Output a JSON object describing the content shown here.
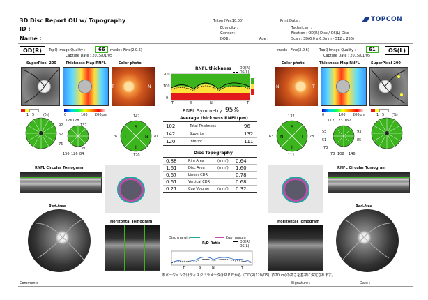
{
  "header": {
    "title": "3D Disc Report OU w/ Topography",
    "version": "Triton (Ver.10.00)",
    "print_date": "Print Date :",
    "brand": "TOPCON",
    "id": "ID :",
    "name": "Name :",
    "ethnicity": "Ethnicity :",
    "gender": "Gender :",
    "dob": "DOB :",
    "age": "Age :",
    "technician": "Technician :",
    "fixation": "Fixation : OD(R) Disc / OS(L) Disc",
    "scan": "Scan : 3D(6.0 x 6.0mm - 512 x 256)"
  },
  "od": {
    "eye": "OD(R)",
    "quality_label": "TopQ Image Quality :",
    "quality": "66",
    "mode": "mode : Fine(2.0.6)",
    "capture": "Capture Date : 2015/01/05",
    "superpixel": "SuperPixel-200",
    "thickness_map": "Thickness Map RNFL",
    "color_photo": "Color photo",
    "sectors_top": [
      "92",
      "126",
      "128",
      "137"
    ],
    "sectors_mid": [
      "62",
      "76",
      "54"
    ],
    "sectors_bottom": [
      "75",
      "80"
    ],
    "sectors_lower": [
      "150",
      "126",
      "84"
    ],
    "quad_values": {
      "s": "142",
      "t": "76",
      "n": "70",
      "i": "120"
    },
    "circular": "RNFL Circular Tomogram",
    "redfree": "Red-free",
    "horizontal": "Horizontal Tomogram"
  },
  "os": {
    "eye": "OS(L)",
    "quality_label": "TopQ Image Quality :",
    "quality": "61",
    "mode": "mode : Fine(2.0.6)",
    "capture": "Capture Date : 2015/01/05",
    "superpixel": "SuperPixel-200",
    "thickness_map": "Thickness Map RNFL",
    "color_photo": "Color photo",
    "sectors_top": [
      "112",
      "123",
      "162"
    ],
    "sectors_mid": [
      "55",
      "93",
      "85"
    ],
    "sectors_bottom": [
      "51",
      "73"
    ],
    "sectors_lower": [
      "78",
      "108",
      "146"
    ],
    "quad_values": {
      "s": "132",
      "t": "63",
      "n": "78",
      "i": "111"
    },
    "circular": "RNFL Circular Tomogram",
    "redfree": "Red-free",
    "horizontal": "Horizontal Tomogram"
  },
  "center": {
    "rnfl_title": "RNFL thickness",
    "legend_od": "OD(R)",
    "legend_os": "OS(L)",
    "axis_letters": [
      "T",
      "S",
      "N",
      "I",
      "T"
    ],
    "y_ticks": [
      "200",
      "100",
      "0"
    ],
    "symmetry_label": "RNFL Symmetry",
    "symmetry_value": "95%",
    "avg_title": "Average thickness RNFL(μm)",
    "avg_rows": [
      {
        "od": "102",
        "label": "Total Thickness",
        "os": "96"
      },
      {
        "od": "142",
        "label": "Superior",
        "os": "132"
      },
      {
        "od": "120",
        "label": "Inferior",
        "os": "111"
      }
    ],
    "topo_title": "Disc Topography",
    "topo_rows": [
      {
        "od": "0.88",
        "label": "Rim Area",
        "unit": "(mm²)",
        "os": "0.64"
      },
      {
        "od": "1.61",
        "label": "Disc Area",
        "unit": "(mm²)",
        "os": "1.60"
      },
      {
        "od": "0.67",
        "label": "Linear CDR",
        "unit": "",
        "os": "0.78"
      },
      {
        "od": "0.61",
        "label": "Vertical CDR",
        "unit": "",
        "os": "0.68"
      },
      {
        "od": "0.21",
        "label": "Cup Volume",
        "unit": "(mm³)",
        "os": "0.32"
      }
    ],
    "disc_margin": "Disc margin",
    "cup_margin": "Cup margin",
    "rd_ratio": "R/D Ratio",
    "rd_axis": [
      "T",
      "S",
      "N",
      "I",
      "T"
    ],
    "note": "本バージョンではディスクパラメータはＲＰＥから（OD(R)120/OS(L)120μm)の高さを基準に決定されます。"
  },
  "footer": {
    "comments": "Comments :",
    "signature": "Signature :",
    "date": "Date :"
  },
  "scale": {
    "one": "1",
    "five": "5",
    "pct": "(%)",
    "ticks": [
      "0",
      "100",
      "200μm"
    ]
  },
  "colors": {
    "green": "#3cb41e",
    "accent": "#1a3c8c",
    "od_line": "#000000",
    "os_line": "#000000"
  }
}
